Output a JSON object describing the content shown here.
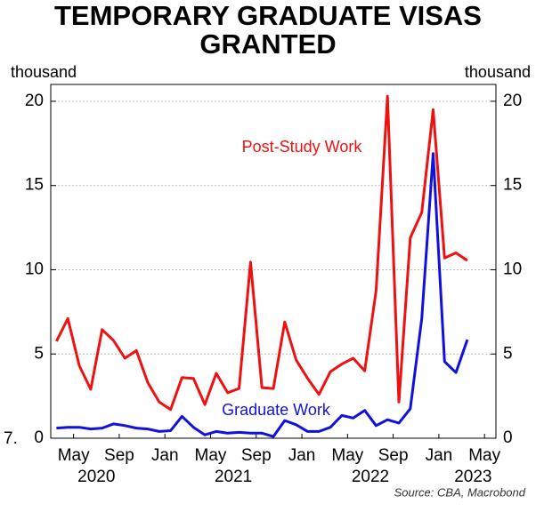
{
  "chart_data": {
    "type": "line",
    "title": [
      "TEMPORARY GRADUATE VISAS",
      "GRANTED"
    ],
    "y_label": "thousand",
    "y2_label": "thousand",
    "source": "Source: CBA, Macrobond",
    "corner_text": "7.",
    "x": [
      "2020-03",
      "2020-04",
      "2020-05",
      "2020-06",
      "2020-07",
      "2020-08",
      "2020-09",
      "2020-10",
      "2020-11",
      "2020-12",
      "2021-01",
      "2021-02",
      "2021-03",
      "2021-04",
      "2021-05",
      "2021-06",
      "2021-07",
      "2021-08",
      "2021-09",
      "2021-10",
      "2021-11",
      "2021-12",
      "2022-01",
      "2022-02",
      "2022-03",
      "2022-04",
      "2022-05",
      "2022-06",
      "2022-07",
      "2022-08",
      "2022-09",
      "2022-10",
      "2022-11",
      "2022-12",
      "2023-01",
      "2023-02",
      "2023-03"
    ],
    "series": [
      {
        "name": "Post-Study Work",
        "color": "#ee1111",
        "values": [
          5.75,
          7.1,
          4.3,
          2.9,
          6.45,
          5.8,
          4.75,
          5.2,
          3.3,
          2.15,
          1.7,
          3.6,
          3.55,
          2.0,
          3.85,
          2.7,
          2.95,
          10.45,
          3.0,
          2.95,
          6.9,
          4.65,
          3.55,
          2.6,
          3.95,
          4.4,
          4.75,
          4.0,
          8.75,
          20.3,
          2.15,
          11.9,
          13.4,
          19.5,
          10.7,
          11.0,
          10.55
        ]
      },
      {
        "name": "Graduate Work",
        "color": "#1111dd",
        "values": [
          0.6,
          0.65,
          0.65,
          0.55,
          0.6,
          0.85,
          0.75,
          0.6,
          0.55,
          0.4,
          0.45,
          1.3,
          0.65,
          0.2,
          0.4,
          0.3,
          0.35,
          0.3,
          0.3,
          0.1,
          1.05,
          0.8,
          0.4,
          0.4,
          0.65,
          1.35,
          1.2,
          1.65,
          0.75,
          1.1,
          0.9,
          1.75,
          7.1,
          16.9,
          4.55,
          3.9,
          5.85
        ]
      }
    ],
    "xlim": [
      "2020-03",
      "2023-06"
    ],
    "xticks": [
      {
        "value": "2020-05",
        "label": "May"
      },
      {
        "value": "2020-09",
        "label": "Sep"
      },
      {
        "value": "2021-01",
        "label": "Jan"
      },
      {
        "value": "2021-05",
        "label": "May"
      },
      {
        "value": "2021-09",
        "label": "Sep"
      },
      {
        "value": "2022-01",
        "label": "Jan"
      },
      {
        "value": "2022-05",
        "label": "May"
      },
      {
        "value": "2022-09",
        "label": "Sep"
      },
      {
        "value": "2023-01",
        "label": "Jan"
      },
      {
        "value": "2023-05",
        "label": "May"
      }
    ],
    "year_labels": [
      {
        "value": "2020-07",
        "label": "2020"
      },
      {
        "value": "2021-07",
        "label": "2021"
      },
      {
        "value": "2022-07",
        "label": "2022"
      },
      {
        "value": "2023-04",
        "label": "2023"
      }
    ],
    "ylim": [
      0,
      21
    ],
    "yticks": [
      0,
      5,
      10,
      15,
      20
    ],
    "grid": true
  }
}
